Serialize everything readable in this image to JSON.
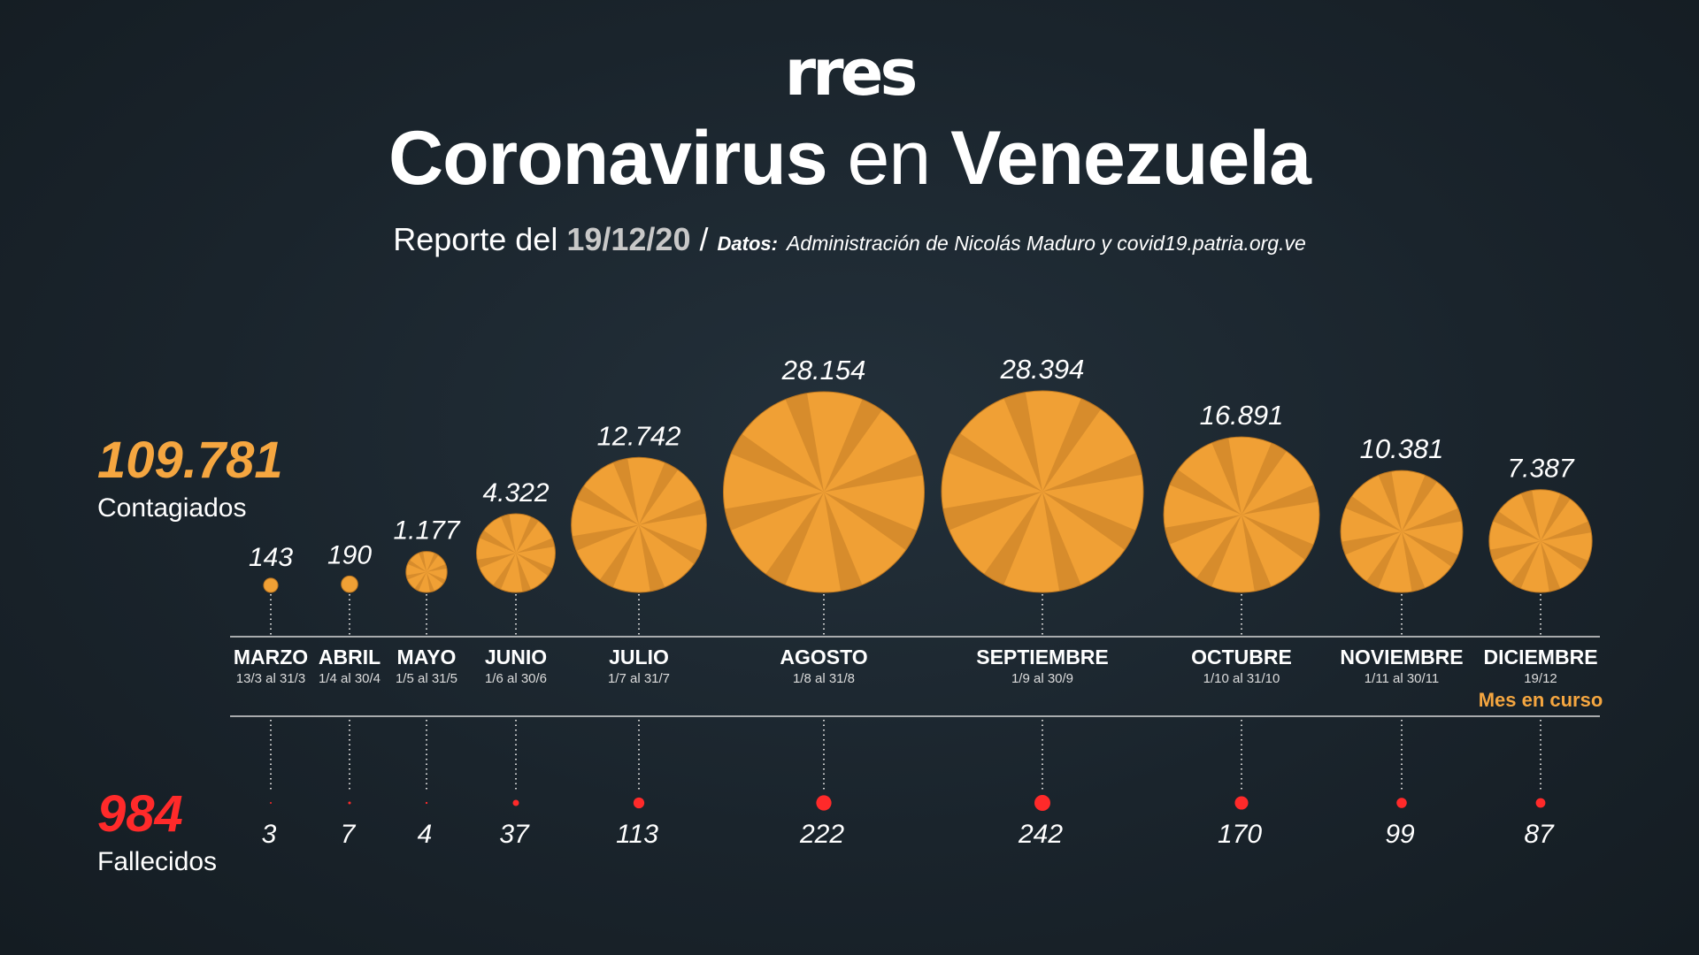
{
  "header": {
    "logo": "rres",
    "title_part1": "Coronavirus",
    "title_part2": "en",
    "title_part3": "Venezuela",
    "report_prefix": "Reporte del",
    "report_date": "19/12/20",
    "separator": "/",
    "source_label": "Datos:",
    "source_text": "Administración de Nicolás Maduro y covid19.patria.org.ve"
  },
  "totals": {
    "cases_total": "109.781",
    "cases_label": "Contagiados",
    "deaths_total": "984",
    "deaths_label": "Fallecidos"
  },
  "colors": {
    "cases": "#f0a035",
    "deaths": "#ff2a2a",
    "current_month_note": "#f5a640"
  },
  "current_month_note": "Mes en curso",
  "chart_data": {
    "type": "bubble",
    "categories": [
      "MARZO",
      "ABRIL",
      "MAYO",
      "JUNIO",
      "JULIO",
      "AGOSTO",
      "SEPTIEMBRE",
      "OCTUBRE",
      "NOVIEMBRE",
      "DICIEMBRE"
    ],
    "periods": [
      "13/3 al 31/3",
      "1/4 al 30/4",
      "1/5 al 31/5",
      "1/6 al 30/6",
      "1/7 al 31/7",
      "1/8 al 31/8",
      "1/9 al 30/9",
      "1/10 al  31/10",
      "1/11 al 30/11",
      "19/12"
    ],
    "series": [
      {
        "name": "Contagiados",
        "values": [
          143,
          190,
          1177,
          4322,
          12742,
          28154,
          28394,
          16891,
          10381,
          7387
        ],
        "labels": [
          "143",
          "190",
          "1.177",
          "4.322",
          "12.742",
          "28.154",
          "28.394",
          "16.891",
          "10.381",
          "7.387"
        ]
      },
      {
        "name": "Fallecidos",
        "values": [
          3,
          7,
          4,
          37,
          113,
          222,
          242,
          170,
          99,
          87
        ],
        "labels": [
          "3",
          "7",
          "4",
          "37",
          "113",
          "222",
          "242",
          "170",
          "99",
          "87"
        ]
      }
    ]
  }
}
